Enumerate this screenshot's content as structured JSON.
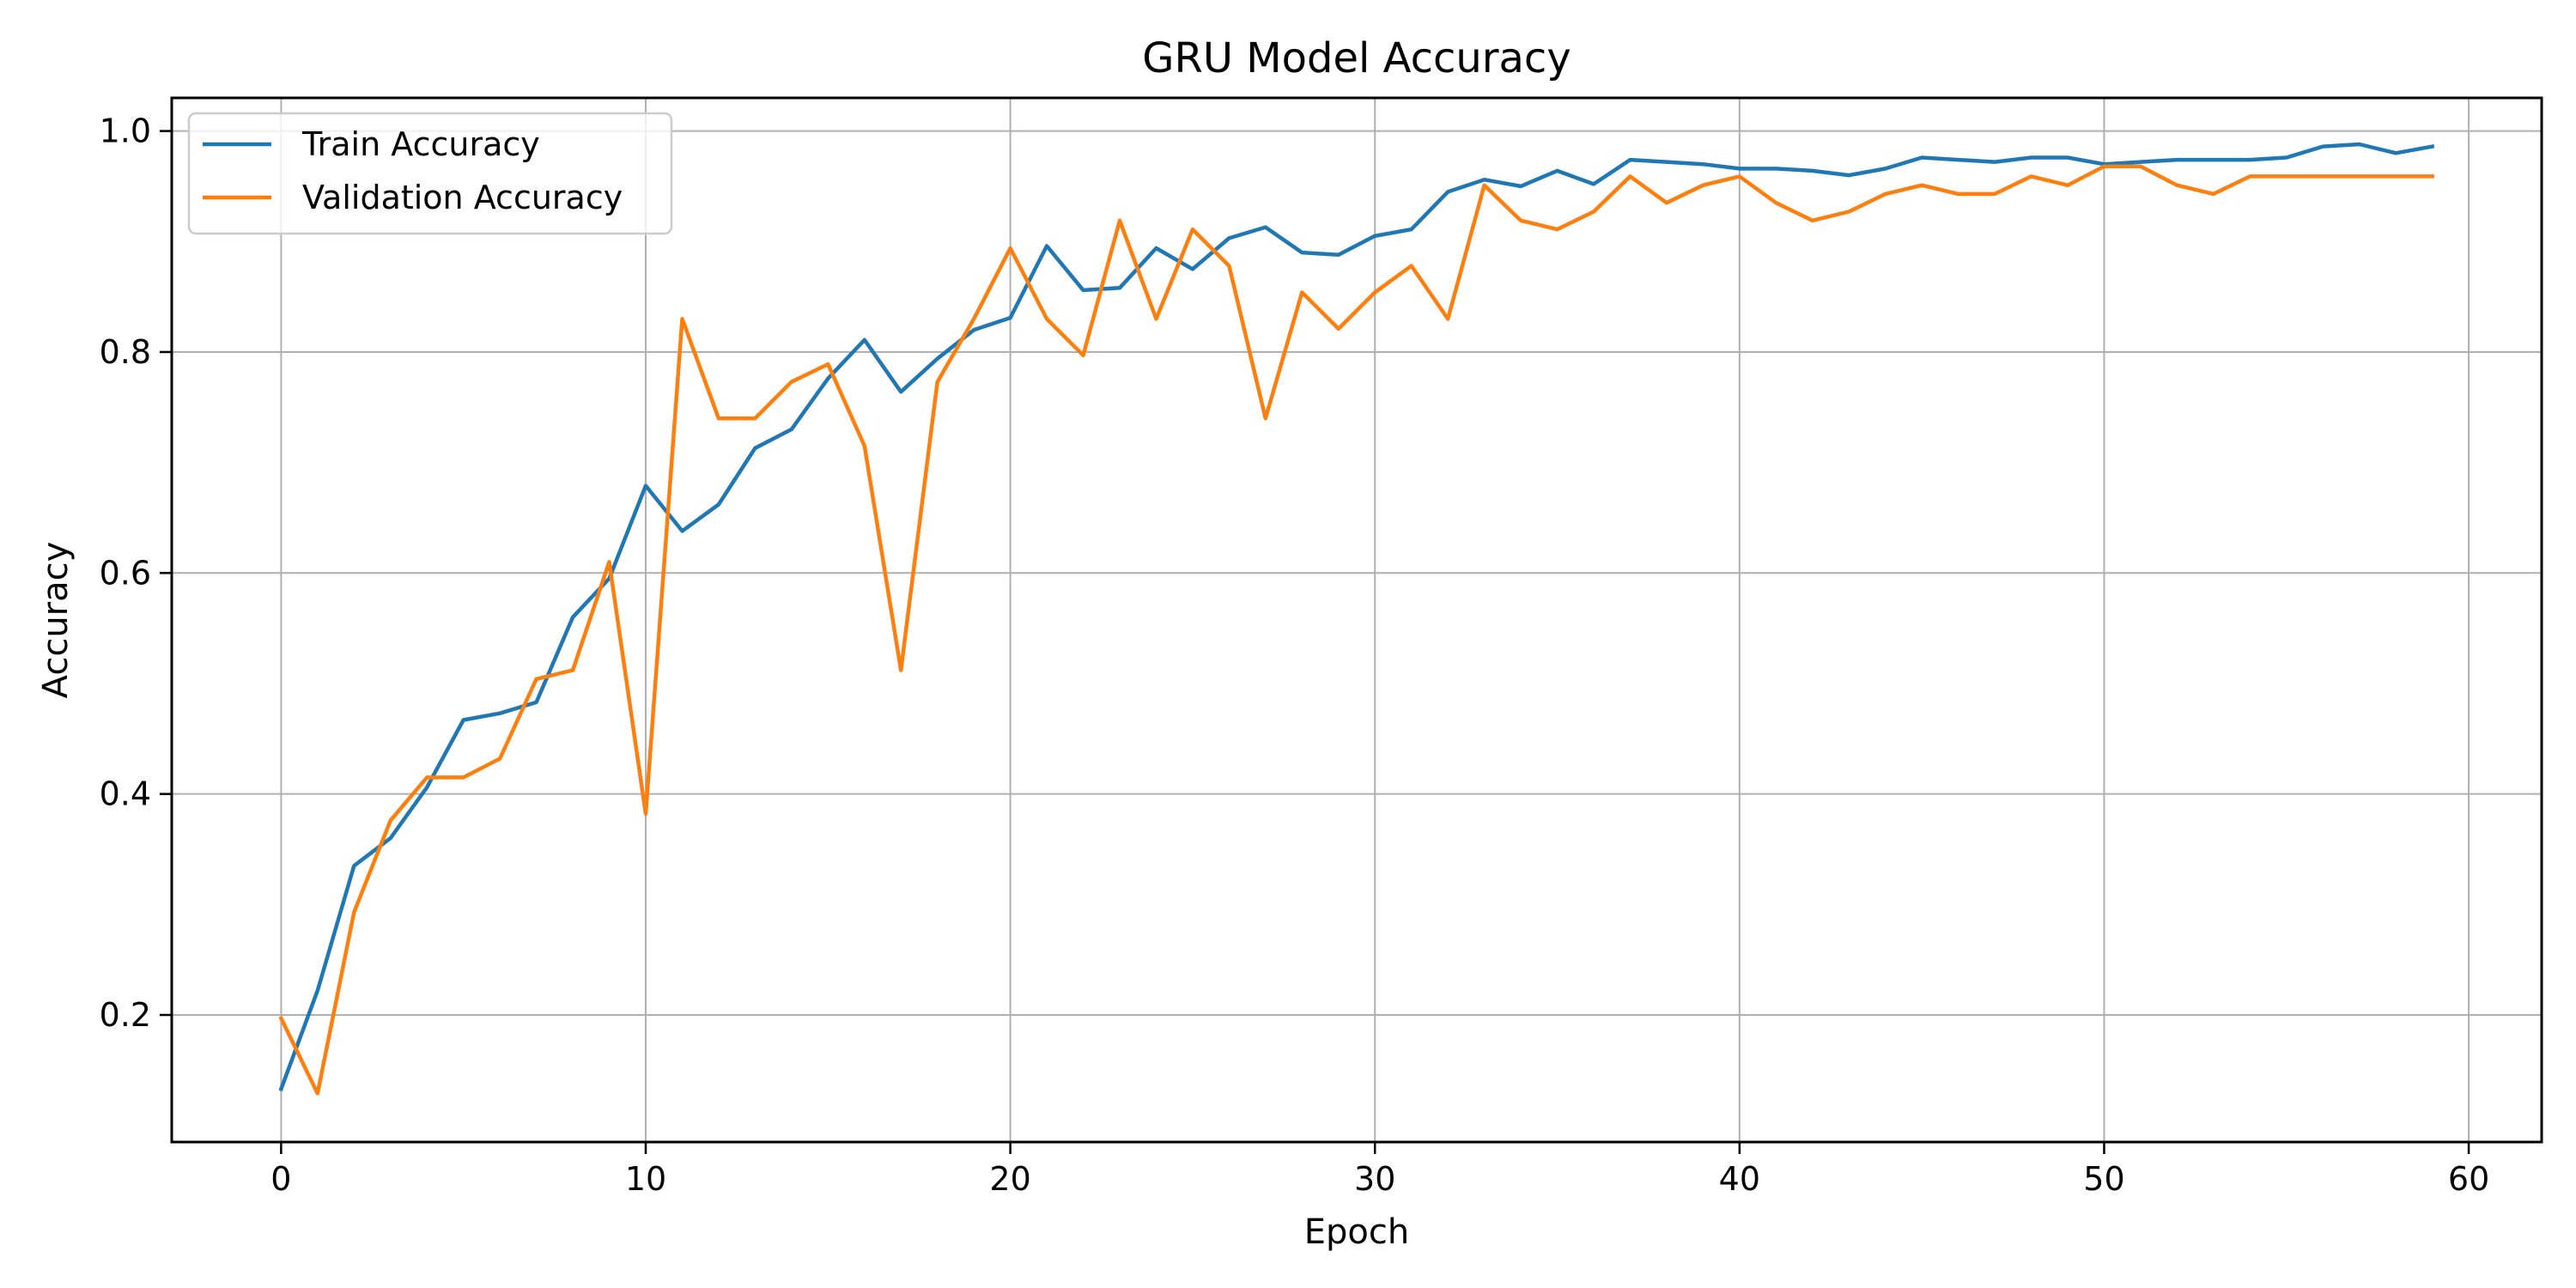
{
  "chart_data": {
    "type": "line",
    "title": "GRU Model Accuracy",
    "xlabel": "Epoch",
    "ylabel": "Accuracy",
    "xlim": [
      -3,
      62
    ],
    "ylim": [
      0.085,
      1.03
    ],
    "x_ticks": [
      0,
      10,
      20,
      30,
      40,
      50,
      60
    ],
    "y_ticks": [
      0.2,
      0.4,
      0.6,
      0.8,
      1.0
    ],
    "y_tick_labels": [
      "0.2",
      "0.4",
      "0.6",
      "0.8",
      "1.0"
    ],
    "grid": true,
    "legend_position": "top-left",
    "x": [
      0,
      1,
      2,
      3,
      4,
      5,
      6,
      7,
      8,
      9,
      10,
      11,
      12,
      13,
      14,
      15,
      16,
      17,
      18,
      19,
      20,
      21,
      22,
      23,
      24,
      25,
      26,
      27,
      28,
      29,
      30,
      31,
      32,
      33,
      34,
      35,
      36,
      37,
      38,
      39,
      40,
      41,
      42,
      43,
      44,
      45,
      46,
      47,
      48,
      49,
      50,
      51,
      52,
      53,
      54,
      55,
      56,
      57,
      58,
      59
    ],
    "series": [
      {
        "name": "Train Accuracy",
        "color": "#1f77b4",
        "values": [
          0.133,
          0.222,
          0.335,
          0.36,
          0.406,
          0.467,
          0.473,
          0.483,
          0.56,
          0.595,
          0.679,
          0.638,
          0.662,
          0.713,
          0.73,
          0.776,
          0.811,
          0.764,
          0.794,
          0.82,
          0.831,
          0.896,
          0.856,
          0.858,
          0.894,
          0.875,
          0.903,
          0.913,
          0.89,
          0.888,
          0.905,
          0.911,
          0.945,
          0.956,
          0.95,
          0.964,
          0.952,
          0.974,
          0.972,
          0.97,
          0.966,
          0.966,
          0.964,
          0.96,
          0.966,
          0.976,
          0.974,
          0.972,
          0.976,
          0.976,
          0.97,
          0.972,
          0.974,
          0.974,
          0.974,
          0.976,
          0.986,
          0.988,
          0.98,
          0.986
        ]
      },
      {
        "name": "Validation Accuracy",
        "color": "#ff7f0e",
        "values": [
          0.197,
          0.129,
          0.293,
          0.376,
          0.415,
          0.415,
          0.432,
          0.504,
          0.512,
          0.61,
          0.382,
          0.83,
          0.74,
          0.74,
          0.773,
          0.789,
          0.715,
          0.512,
          0.773,
          0.83,
          0.894,
          0.83,
          0.797,
          0.919,
          0.83,
          0.911,
          0.878,
          0.74,
          0.854,
          0.821,
          0.854,
          0.878,
          0.83,
          0.951,
          0.919,
          0.911,
          0.927,
          0.959,
          0.935,
          0.951,
          0.959,
          0.935,
          0.919,
          0.927,
          0.943,
          0.951,
          0.943,
          0.943,
          0.959,
          0.951,
          0.968,
          0.968,
          0.951,
          0.943,
          0.959,
          0.959,
          0.959,
          0.959,
          0.959,
          0.959
        ]
      }
    ]
  }
}
